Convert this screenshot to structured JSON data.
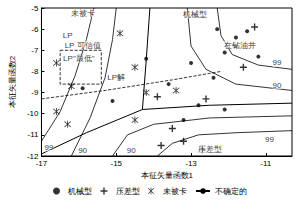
{
  "chart_data": {
    "type": "scatter",
    "x_label": "本征矢量函数1",
    "y_label": "本征矢量函数2",
    "xlim": [
      -17,
      -10.3
    ],
    "xticks": [
      -17,
      -15,
      -13,
      -11
    ],
    "ylim": [
      -12,
      -5
    ],
    "yticks": [
      -5,
      -6,
      -7,
      -8,
      -9,
      -10,
      -11,
      -12
    ],
    "grid": false,
    "legend": "bottom",
    "series": [
      {
        "name": "机械型",
        "type": "scatter",
        "marker": "dot",
        "color": "#000000",
        "x": [
          -12.3,
          -11.8,
          -11.5,
          -11.8,
          -12.1,
          -11.2,
          -13.0,
          -14.2,
          -13.6,
          -15.1,
          -12.8,
          -12.1,
          -13.2,
          -15.9,
          -12.4
        ],
        "y": [
          -6.0,
          -6.4,
          -6.1,
          -6.8,
          -7.1,
          -7.3,
          -7.6,
          -7.4,
          -8.6,
          -9.4,
          -9.6,
          -9.8,
          -10.3,
          -8.8,
          -8.3
        ]
      },
      {
        "name": "压差型",
        "type": "scatter",
        "marker": "plus",
        "color": "#000000",
        "x": [
          -11.3,
          -11.6,
          -12.6,
          -13.2,
          -13.8,
          -12.7,
          -13.5,
          -13.9
        ],
        "y": [
          -5.9,
          -7.8,
          -9.3,
          -11.3,
          -11.5,
          -11.7,
          -10.7,
          -9.2
        ]
      },
      {
        "name": "未被卡",
        "type": "scatter",
        "marker": "asterisk",
        "color": "#000000",
        "x": [
          -14.9,
          -14.5,
          -16.6,
          -16.2,
          -16.6,
          -16.3,
          -14.5,
          -14.2,
          -13.4
        ],
        "y": [
          -6.2,
          -7.8,
          -7.6,
          -8.7,
          -9.9,
          -10.5,
          -10.3,
          -9.0,
          -8.9
        ]
      },
      {
        "name": "不确定的",
        "type": "line",
        "line_style": "solid",
        "color": "#000000",
        "x": [
          -14.1,
          -14.2,
          -14.3,
          null,
          -14.3,
          -12.5,
          -10.3,
          null,
          -14.3,
          -15.8,
          -17
        ],
        "y": [
          -5,
          -7.5,
          -9.8,
          null,
          -9.8,
          -9.6,
          -9.5,
          null,
          -9.8,
          -10.9,
          -11.9
        ]
      }
    ],
    "contours": [
      {
        "line_style": "solid",
        "x": [
          -15.6,
          -15.8,
          -16.1,
          -16.5,
          -17
        ],
        "y": [
          -5,
          -6.5,
          -8.2,
          -9.9,
          -11.3
        ]
      },
      {
        "line_style": "solid",
        "x": [
          -15.0,
          -15.1,
          -15.3,
          -15.7,
          -16.2
        ],
        "y": [
          -5,
          -6.5,
          -8.3,
          -10.2,
          -12
        ]
      },
      {
        "line_style": "solid",
        "x": [
          -13.1,
          -13.0,
          -12.6,
          -11.8,
          -10.3
        ],
        "y": [
          -5,
          -6.8,
          -7.9,
          -8.6,
          -8.9
        ]
      },
      {
        "line_style": "solid",
        "x": [
          -12.3,
          -12.2,
          -11.9,
          -11.2,
          -10.3
        ],
        "y": [
          -5,
          -6.3,
          -7.2,
          -7.7,
          -7.9
        ]
      },
      {
        "line_style": "solid",
        "x": [
          -15.1,
          -14.7,
          -14.0,
          -12.5,
          -10.3
        ],
        "y": [
          -12,
          -11.0,
          -10.5,
          -10.2,
          -10.1
        ]
      },
      {
        "line_style": "solid",
        "x": [
          -13.9,
          -13.5,
          -12.8,
          -11.8,
          -10.3
        ],
        "y": [
          -12,
          -11.4,
          -11.0,
          -10.9,
          -10.8
        ]
      },
      {
        "line_style": "dashed",
        "x": [
          -17,
          -15.3,
          -13.5,
          -12.2
        ],
        "y": [
          -9.3,
          -8.9,
          -8.4,
          -8.0
        ]
      },
      {
        "line_style": "dashed",
        "x": [
          -16.5,
          -15.4,
          -15.4,
          -16.5,
          -16.5
        ],
        "y": [
          -7.0,
          -7.0,
          -8.6,
          -8.6,
          -7.0
        ]
      }
    ],
    "annotations": [
      {
        "text": "未被卡",
        "x": -15.9,
        "y": -5.25
      },
      {
        "text": "机械型",
        "x": -12.9,
        "y": -5.3
      },
      {
        "text": "在钻油井",
        "x": -11.7,
        "y": -6.75
      },
      {
        "text": "LP",
        "x": -16.3,
        "y": -6.3
      },
      {
        "text": "LP 可信值",
        "x": -15.9,
        "y": -6.75
      },
      {
        "text": "LP\"最低\"",
        "x": -16.0,
        "y": -7.4
      },
      {
        "text": "LP解",
        "x": -15.0,
        "y": -8.3
      },
      {
        "text": "压差型",
        "x": -12.5,
        "y": -11.7
      },
      {
        "text": "99",
        "x": -16.8,
        "y": -11.6
      },
      {
        "text": "90",
        "x": -15.9,
        "y": -11.75
      },
      {
        "text": "99",
        "x": -10.7,
        "y": -7.6
      },
      {
        "text": "90",
        "x": -10.7,
        "y": -8.65
      },
      {
        "text": "90",
        "x": -14.6,
        "y": -11.75
      },
      {
        "text": "99",
        "x": -10.9,
        "y": -11.2
      }
    ]
  }
}
